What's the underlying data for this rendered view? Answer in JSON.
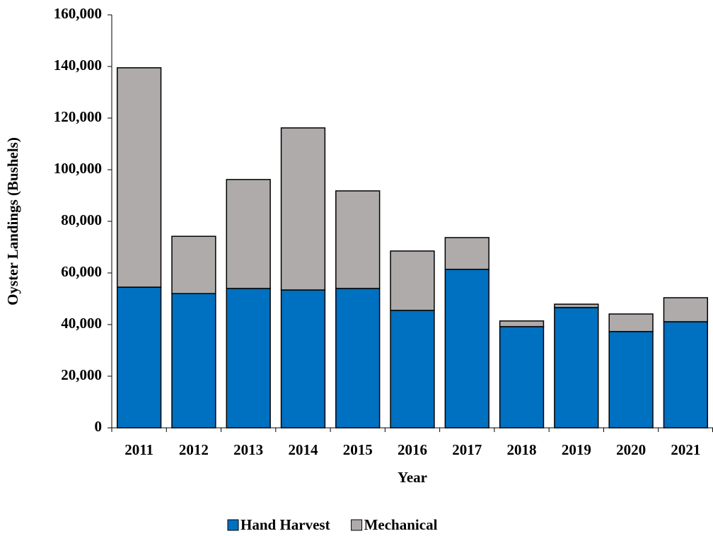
{
  "chart_data": {
    "type": "stacked_bar",
    "x_label": "Year",
    "y_label": "Oyster Landings (Bushels)",
    "categories": [
      "2011",
      "2012",
      "2013",
      "2014",
      "2015",
      "2016",
      "2017",
      "2018",
      "2019",
      "2020",
      "2021"
    ],
    "series": [
      {
        "name": "Hand Harvest",
        "color": "#0070c0",
        "values": [
          54500,
          52000,
          54000,
          53400,
          54000,
          45500,
          61400,
          39200,
          46600,
          37300,
          41100
        ]
      },
      {
        "name": "Mechanical",
        "color": "#afabab",
        "values": [
          85000,
          22200,
          42200,
          62800,
          37800,
          23000,
          12300,
          2200,
          1300,
          6800,
          9300
        ]
      }
    ],
    "ylim": [
      0,
      160000
    ],
    "yticks": [
      0,
      {
        "value": 20000,
        "label": "20,000"
      },
      {
        "value": 40000,
        "label": "40,000"
      },
      {
        "value": 60000,
        "label": "60,000"
      },
      {
        "value": 80000,
        "label": "80,000"
      },
      {
        "value": 100000,
        "label": "100,000"
      },
      {
        "value": 120000,
        "label": "120,000"
      },
      {
        "value": 140000,
        "label": "140,000"
      },
      {
        "value": 160000,
        "label": "160,000"
      }
    ],
    "legend": "bottom"
  }
}
